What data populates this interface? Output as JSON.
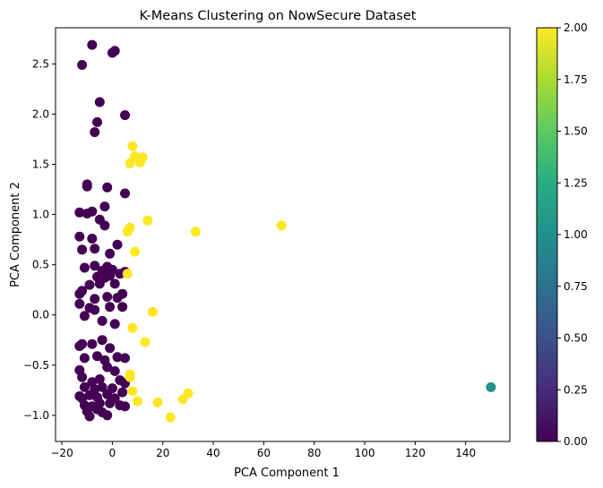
{
  "chart_data": {
    "type": "scatter",
    "title": "K-Means Clustering on NowSecure Dataset",
    "xlabel": "PCA Component 1",
    "ylabel": "PCA Component 2",
    "xlim": [
      -22.5,
      157.5
    ],
    "ylim": [
      -1.26,
      2.86
    ],
    "xticks": [
      -20,
      0,
      20,
      40,
      60,
      80,
      100,
      120,
      140
    ],
    "yticks": [
      -1.0,
      -0.5,
      0.0,
      0.5,
      1.0,
      1.5,
      2.0,
      2.5
    ],
    "grid": false,
    "colormap": "viridis",
    "colorbar": {
      "range": [
        0,
        2
      ],
      "ticks": [
        "0.00",
        "0.25",
        "0.50",
        "0.75",
        "1.00",
        "1.25",
        "1.50",
        "1.75",
        "2.00"
      ]
    },
    "cluster_colors": [
      "#440154",
      "#21918c",
      "#fde725"
    ],
    "points": [
      {
        "x": -8,
        "y": 2.69,
        "c": 0
      },
      {
        "x": -12,
        "y": 2.49,
        "c": 0
      },
      {
        "x": 0,
        "y": 2.61,
        "c": 0
      },
      {
        "x": 1,
        "y": 2.63,
        "c": 0
      },
      {
        "x": -5,
        "y": 2.12,
        "c": 0
      },
      {
        "x": 5,
        "y": 1.99,
        "c": 0
      },
      {
        "x": -6,
        "y": 1.92,
        "c": 0
      },
      {
        "x": -7,
        "y": 1.82,
        "c": 0
      },
      {
        "x": -10,
        "y": 1.3,
        "c": 0
      },
      {
        "x": -10,
        "y": 1.28,
        "c": 0
      },
      {
        "x": -2,
        "y": 1.27,
        "c": 0
      },
      {
        "x": 5,
        "y": 1.21,
        "c": 0
      },
      {
        "x": -13,
        "y": 1.02,
        "c": 0
      },
      {
        "x": -10,
        "y": 1.01,
        "c": 0
      },
      {
        "x": -8,
        "y": 1.03,
        "c": 0
      },
      {
        "x": -3,
        "y": 1.08,
        "c": 0
      },
      {
        "x": -5,
        "y": 0.95,
        "c": 0
      },
      {
        "x": -3,
        "y": 0.89,
        "c": 0
      },
      {
        "x": -13,
        "y": 0.78,
        "c": 0
      },
      {
        "x": -8,
        "y": 0.76,
        "c": 0
      },
      {
        "x": -12,
        "y": 0.65,
        "c": 0
      },
      {
        "x": -7,
        "y": 0.66,
        "c": 0
      },
      {
        "x": 2,
        "y": 0.7,
        "c": 0
      },
      {
        "x": -1,
        "y": 0.61,
        "c": 0
      },
      {
        "x": -11,
        "y": 0.47,
        "c": 0
      },
      {
        "x": -7,
        "y": 0.49,
        "c": 0
      },
      {
        "x": -4,
        "y": 0.44,
        "c": 0
      },
      {
        "x": -2,
        "y": 0.48,
        "c": 0
      },
      {
        "x": 0,
        "y": 0.45,
        "c": 0
      },
      {
        "x": 3,
        "y": 0.41,
        "c": 0
      },
      {
        "x": 5,
        "y": 0.43,
        "c": 0
      },
      {
        "x": -6,
        "y": 0.38,
        "c": 0
      },
      {
        "x": -3,
        "y": 0.37,
        "c": 0
      },
      {
        "x": -1,
        "y": 0.39,
        "c": 0
      },
      {
        "x": -9,
        "y": 0.3,
        "c": 0
      },
      {
        "x": -5,
        "y": 0.31,
        "c": 0
      },
      {
        "x": 1,
        "y": 0.31,
        "c": 0
      },
      {
        "x": -13,
        "y": 0.21,
        "c": 0
      },
      {
        "x": -12,
        "y": 0.24,
        "c": 0
      },
      {
        "x": -7,
        "y": 0.16,
        "c": 0
      },
      {
        "x": -2,
        "y": 0.18,
        "c": 0
      },
      {
        "x": 2,
        "y": 0.17,
        "c": 0
      },
      {
        "x": 4,
        "y": 0.21,
        "c": 0
      },
      {
        "x": -13,
        "y": 0.11,
        "c": 0
      },
      {
        "x": -9,
        "y": 0.07,
        "c": 0
      },
      {
        "x": -7,
        "y": 0.05,
        "c": 0
      },
      {
        "x": -1,
        "y": 0.08,
        "c": 0
      },
      {
        "x": 4,
        "y": 0.08,
        "c": 0
      },
      {
        "x": -11,
        "y": -0.01,
        "c": 0
      },
      {
        "x": -4,
        "y": -0.06,
        "c": 0
      },
      {
        "x": 1,
        "y": -0.09,
        "c": 0
      },
      {
        "x": -13,
        "y": -0.31,
        "c": 0
      },
      {
        "x": -12,
        "y": -0.29,
        "c": 0
      },
      {
        "x": -8,
        "y": -0.29,
        "c": 0
      },
      {
        "x": -4,
        "y": -0.25,
        "c": 0
      },
      {
        "x": -1,
        "y": -0.33,
        "c": 0
      },
      {
        "x": -11,
        "y": -0.43,
        "c": 0
      },
      {
        "x": -6,
        "y": -0.41,
        "c": 0
      },
      {
        "x": -3,
        "y": -0.45,
        "c": 0
      },
      {
        "x": 2,
        "y": -0.42,
        "c": 0
      },
      {
        "x": 5,
        "y": -0.43,
        "c": 0
      },
      {
        "x": -13,
        "y": -0.55,
        "c": 0
      },
      {
        "x": -2,
        "y": -0.52,
        "c": 0
      },
      {
        "x": 1,
        "y": -0.56,
        "c": 0
      },
      {
        "x": -12,
        "y": -0.62,
        "c": 0
      },
      {
        "x": -8,
        "y": -0.67,
        "c": 0
      },
      {
        "x": -5,
        "y": -0.64,
        "c": 0
      },
      {
        "x": 3,
        "y": -0.65,
        "c": 0
      },
      {
        "x": 5,
        "y": -0.68,
        "c": 0
      },
      {
        "x": -11,
        "y": -0.72,
        "c": 0
      },
      {
        "x": -7,
        "y": -0.74,
        "c": 0
      },
      {
        "x": -4,
        "y": -0.72,
        "c": 0
      },
      {
        "x": 0,
        "y": -0.73,
        "c": 0
      },
      {
        "x": 4,
        "y": -0.77,
        "c": 0
      },
      {
        "x": -13,
        "y": -0.81,
        "c": 0
      },
      {
        "x": -12,
        "y": -0.83,
        "c": 0
      },
      {
        "x": -9,
        "y": -0.8,
        "c": 0
      },
      {
        "x": -6,
        "y": -0.82,
        "c": 0
      },
      {
        "x": -2,
        "y": -0.79,
        "c": 0
      },
      {
        "x": 1,
        "y": -0.83,
        "c": 0
      },
      {
        "x": -11,
        "y": -0.9,
        "c": 0
      },
      {
        "x": -8,
        "y": -0.91,
        "c": 0
      },
      {
        "x": -5,
        "y": -0.88,
        "c": 0
      },
      {
        "x": -1,
        "y": -0.88,
        "c": 0
      },
      {
        "x": 3,
        "y": -0.9,
        "c": 0
      },
      {
        "x": 5,
        "y": -0.91,
        "c": 0
      },
      {
        "x": -10,
        "y": -0.96,
        "c": 0
      },
      {
        "x": -6,
        "y": -0.94,
        "c": 0
      },
      {
        "x": -4,
        "y": -0.97,
        "c": 0
      },
      {
        "x": -9,
        "y": -1.01,
        "c": 0
      },
      {
        "x": -2,
        "y": -1.0,
        "c": 0
      },
      {
        "x": 8,
        "y": 1.68,
        "c": 2
      },
      {
        "x": 9,
        "y": 1.58,
        "c": 2
      },
      {
        "x": 12,
        "y": 1.57,
        "c": 2
      },
      {
        "x": 7,
        "y": 1.51,
        "c": 2
      },
      {
        "x": 11,
        "y": 1.52,
        "c": 2
      },
      {
        "x": 14,
        "y": 0.94,
        "c": 2
      },
      {
        "x": 7,
        "y": 0.87,
        "c": 2
      },
      {
        "x": 6,
        "y": 0.83,
        "c": 2
      },
      {
        "x": 33,
        "y": 0.83,
        "c": 2
      },
      {
        "x": 67,
        "y": 0.89,
        "c": 2
      },
      {
        "x": 9,
        "y": 0.63,
        "c": 2
      },
      {
        "x": 6,
        "y": 0.41,
        "c": 2
      },
      {
        "x": 16,
        "y": 0.03,
        "c": 2
      },
      {
        "x": 8,
        "y": -0.13,
        "c": 2
      },
      {
        "x": 13,
        "y": -0.27,
        "c": 2
      },
      {
        "x": 7,
        "y": -0.59,
        "c": 2
      },
      {
        "x": 7,
        "y": -0.62,
        "c": 2
      },
      {
        "x": 8,
        "y": -0.76,
        "c": 2
      },
      {
        "x": 10,
        "y": -0.86,
        "c": 2
      },
      {
        "x": 18,
        "y": -0.87,
        "c": 2
      },
      {
        "x": 30,
        "y": -0.78,
        "c": 2
      },
      {
        "x": 28,
        "y": -0.84,
        "c": 2
      },
      {
        "x": 23,
        "y": -1.02,
        "c": 2
      },
      {
        "x": 150,
        "y": -0.72,
        "c": 1
      }
    ]
  }
}
